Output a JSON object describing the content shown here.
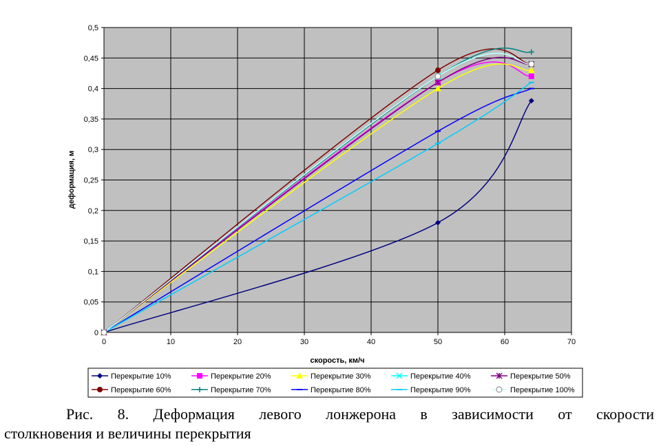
{
  "caption": {
    "line1": "Рис. 8. Деформация левого лонжерона в зависимости от скорости",
    "line2": "столкновения и величины перекрытия"
  },
  "chart_data": {
    "type": "line",
    "xlabel": "скорость, км/ч",
    "ylabel": "деформация, м",
    "xlim": [
      0,
      70
    ],
    "ylim": [
      0,
      0.5
    ],
    "xticks": [
      "0",
      "10",
      "20",
      "30",
      "40",
      "50",
      "60",
      "70"
    ],
    "yticks": [
      "0",
      "0,05",
      "0,1",
      "0,15",
      "0,2",
      "0,25",
      "0,3",
      "0,35",
      "0,4",
      "0,45",
      "0,5"
    ],
    "grid": true,
    "plot_background": "#c0c0c0",
    "smoothed": true,
    "legend_position": "bottom",
    "x": [
      0,
      50,
      64
    ],
    "series": [
      {
        "name": "Перекрытие 10%",
        "values": [
          0,
          0.18,
          0.38
        ],
        "color": "#000080",
        "marker": "diamond"
      },
      {
        "name": "Перекрытие 20%",
        "values": [
          0,
          0.41,
          0.42
        ],
        "color": "#ff00ff",
        "marker": "square"
      },
      {
        "name": "Перекрытие 30%",
        "values": [
          0,
          0.4,
          0.43
        ],
        "color": "#ffff00",
        "marker": "triangle"
      },
      {
        "name": "Перекрытие 40%",
        "values": [
          0,
          0.42,
          0.44
        ],
        "color": "#00ffff",
        "marker": "x"
      },
      {
        "name": "Перекрытие 50%",
        "values": [
          0,
          0.41,
          0.44
        ],
        "color": "#800080",
        "marker": "star"
      },
      {
        "name": "Перекрытие 60%",
        "values": [
          0,
          0.43,
          0.44
        ],
        "color": "#800000",
        "marker": "circle"
      },
      {
        "name": "Перекрытие 70%",
        "values": [
          0,
          0.42,
          0.46
        ],
        "color": "#008080",
        "marker": "plus"
      },
      {
        "name": "Перекрытие 80%",
        "values": [
          0,
          0.33,
          0.4
        ],
        "color": "#0000ff",
        "marker": "dash"
      },
      {
        "name": "Перекрытие 90%",
        "values": [
          0,
          0.31,
          0.41
        ],
        "color": "#00ccff",
        "marker": "dash"
      },
      {
        "name": "Перекрытие 100%",
        "values": [
          0,
          0.42,
          0.44
        ],
        "color": "#ccffff",
        "marker": "circle-open"
      }
    ]
  }
}
